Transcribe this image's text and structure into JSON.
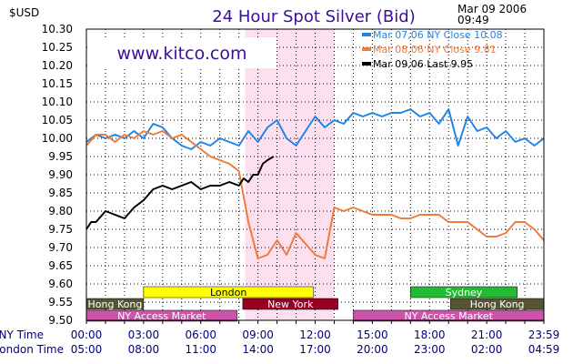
{
  "chart_data": {
    "type": "line",
    "title": "24 Hour Spot Silver (Bid)",
    "ylabel": "$USD",
    "timestamp_date": "Mar 09 2006",
    "timestamp_time": "09:49",
    "watermark": "www.kitco.com",
    "ylim": [
      9.5,
      10.3
    ],
    "y_ticks": [
      "9.50",
      "9.55",
      "9.60",
      "9.65",
      "9.70",
      "9.75",
      "9.80",
      "9.85",
      "9.90",
      "9.95",
      "10.00",
      "10.05",
      "10.10",
      "10.15",
      "10.20",
      "10.25",
      "10.30"
    ],
    "x_ticks_ny": [
      "00:00",
      "03:00",
      "06:00",
      "09:00",
      "12:00",
      "15:00",
      "18:00",
      "21:00",
      "23:59"
    ],
    "x_ticks_london": [
      "05:00",
      "08:00",
      "11:00",
      "14:00",
      "17:00",
      "20:00",
      "23:00",
      "02:00",
      "04:59"
    ],
    "ny_row_label": "NY Time",
    "london_row_label": "London Time",
    "xlim_hours": [
      0,
      24
    ],
    "ny_session_shading": [
      8.33,
      13.0
    ],
    "colors": {
      "blue": "#1f86e8",
      "orange": "#ee7a3d",
      "black": "#000000",
      "title": "#3b0e9b",
      "shade": "#fde0ef"
    },
    "legend": [
      {
        "label": "Mar 07,06  NY  Close  10.08",
        "color": "#1f86e8"
      },
      {
        "label": "Mar 08,06  NY  Close  9.81",
        "color": "#ee7a3d"
      },
      {
        "label": "Mar 09,06  Last  9.95",
        "color": "#000000"
      }
    ],
    "markets": [
      {
        "label": "London",
        "start": 3.0,
        "end": 11.9,
        "row": 0,
        "color": "#ffff00",
        "text_color": "#000000"
      },
      {
        "label": "Sydney",
        "start": 17.0,
        "end": 22.6,
        "row": 0,
        "color": "#22bb33",
        "text_color": "#ffffff"
      },
      {
        "label": "Hong Kong",
        "start": 0.0,
        "end": 3.0,
        "row": 1,
        "color": "#555533",
        "text_color": "#ffffff"
      },
      {
        "label": "New York",
        "start": 8.2,
        "end": 13.2,
        "row": 1,
        "color": "#990022",
        "text_color": "#ffffff"
      },
      {
        "label": "Hong Kong",
        "start": 19.1,
        "end": 24.0,
        "row": 1,
        "color": "#555533",
        "text_color": "#ffffff"
      },
      {
        "label": "NY  Access  Market",
        "start": 0.0,
        "end": 7.9,
        "row": 2,
        "color": "#cc55aa",
        "text_color": "#ffffff"
      },
      {
        "label": "NY  Access  Market",
        "start": 14.0,
        "end": 24.0,
        "row": 2,
        "color": "#cc55aa",
        "text_color": "#ffffff"
      }
    ],
    "series": [
      {
        "name": "Mar 07,06  NY  Close  10.08",
        "color": "#1f86e8",
        "x": [
          0,
          0.5,
          1,
          1.5,
          2,
          2.5,
          3,
          3.5,
          4,
          4.5,
          5,
          5.5,
          6,
          6.5,
          7,
          7.5,
          8,
          8.5,
          9,
          9.5,
          10,
          10.5,
          11,
          11.5,
          12,
          12.5,
          13,
          13.5,
          14,
          14.5,
          15,
          15.5,
          16,
          16.5,
          17,
          17.5,
          18,
          18.5,
          19,
          19.5,
          20,
          20.5,
          21,
          21.5,
          22,
          22.5,
          23,
          23.5,
          24
        ],
        "values": [
          9.99,
          10.01,
          10.0,
          10.01,
          10.0,
          10.02,
          10.0,
          10.04,
          10.03,
          10.0,
          9.98,
          9.97,
          9.99,
          9.98,
          10.0,
          9.99,
          9.98,
          10.02,
          9.99,
          10.03,
          10.05,
          10.0,
          9.98,
          10.02,
          10.06,
          10.03,
          10.05,
          10.04,
          10.07,
          10.06,
          10.07,
          10.06,
          10.07,
          10.07,
          10.08,
          10.06,
          10.07,
          10.04,
          10.08,
          9.98,
          10.06,
          10.02,
          10.03,
          10.0,
          10.02,
          9.99,
          10.0,
          9.98,
          10.0
        ]
      },
      {
        "name": "Mar 08,06  NY  Close  9.81",
        "color": "#ee7a3d",
        "x": [
          0,
          0.5,
          1,
          1.5,
          2,
          2.5,
          3,
          3.5,
          4,
          4.5,
          5,
          5.5,
          6,
          6.5,
          7,
          7.5,
          8,
          8.5,
          9,
          9.5,
          10,
          10.5,
          11,
          11.5,
          12,
          12.5,
          13,
          13.5,
          14,
          14.5,
          15,
          15.5,
          16,
          16.5,
          17,
          17.5,
          18,
          18.5,
          19,
          19.5,
          20,
          20.5,
          21,
          21.5,
          22,
          22.5,
          23,
          23.5,
          24
        ],
        "values": [
          9.98,
          10.01,
          10.01,
          9.99,
          10.01,
          10.0,
          10.02,
          10.01,
          10.02,
          10.0,
          10.01,
          9.99,
          9.97,
          9.95,
          9.94,
          9.93,
          9.91,
          9.77,
          9.67,
          9.68,
          9.72,
          9.68,
          9.74,
          9.71,
          9.68,
          9.67,
          9.81,
          9.8,
          9.81,
          9.8,
          9.79,
          9.79,
          9.79,
          9.78,
          9.78,
          9.79,
          9.79,
          9.79,
          9.77,
          9.77,
          9.77,
          9.75,
          9.73,
          9.73,
          9.74,
          9.77,
          9.77,
          9.75,
          9.72
        ]
      },
      {
        "name": "Mar 09,06  Last  9.95",
        "color": "#000000",
        "x": [
          0,
          0.25,
          0.5,
          1,
          1.5,
          2,
          2.5,
          3,
          3.5,
          4,
          4.5,
          5,
          5.5,
          6,
          6.5,
          7,
          7.5,
          8,
          8.25,
          8.5,
          8.75,
          9,
          9.25,
          9.5,
          9.82
        ],
        "values": [
          9.75,
          9.77,
          9.77,
          9.8,
          9.79,
          9.78,
          9.81,
          9.83,
          9.86,
          9.87,
          9.86,
          9.87,
          9.88,
          9.86,
          9.87,
          9.87,
          9.88,
          9.87,
          9.89,
          9.88,
          9.9,
          9.9,
          9.93,
          9.94,
          9.95
        ]
      }
    ]
  }
}
